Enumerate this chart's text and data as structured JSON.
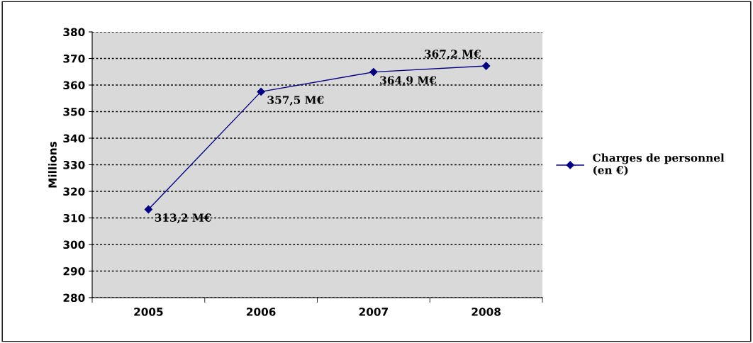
{
  "chart_data": {
    "type": "line",
    "ylabel": "Millions",
    "categories": [
      "2005",
      "2006",
      "2007",
      "2008"
    ],
    "series": [
      {
        "name": "Charges de personnel\n(en €)",
        "color": "#000080",
        "values": [
          313.2,
          357.5,
          364.9,
          367.2
        ],
        "value_labels": [
          "313,2 M€",
          "357,5 M€",
          "364,9 M€",
          "367,2 M€"
        ]
      }
    ],
    "ylim": [
      280,
      380
    ],
    "yticks": [
      280,
      290,
      300,
      310,
      320,
      330,
      340,
      350,
      360,
      370,
      380
    ],
    "grid": "y",
    "legend": "right",
    "marker": "diamond",
    "line_style": "solid"
  }
}
